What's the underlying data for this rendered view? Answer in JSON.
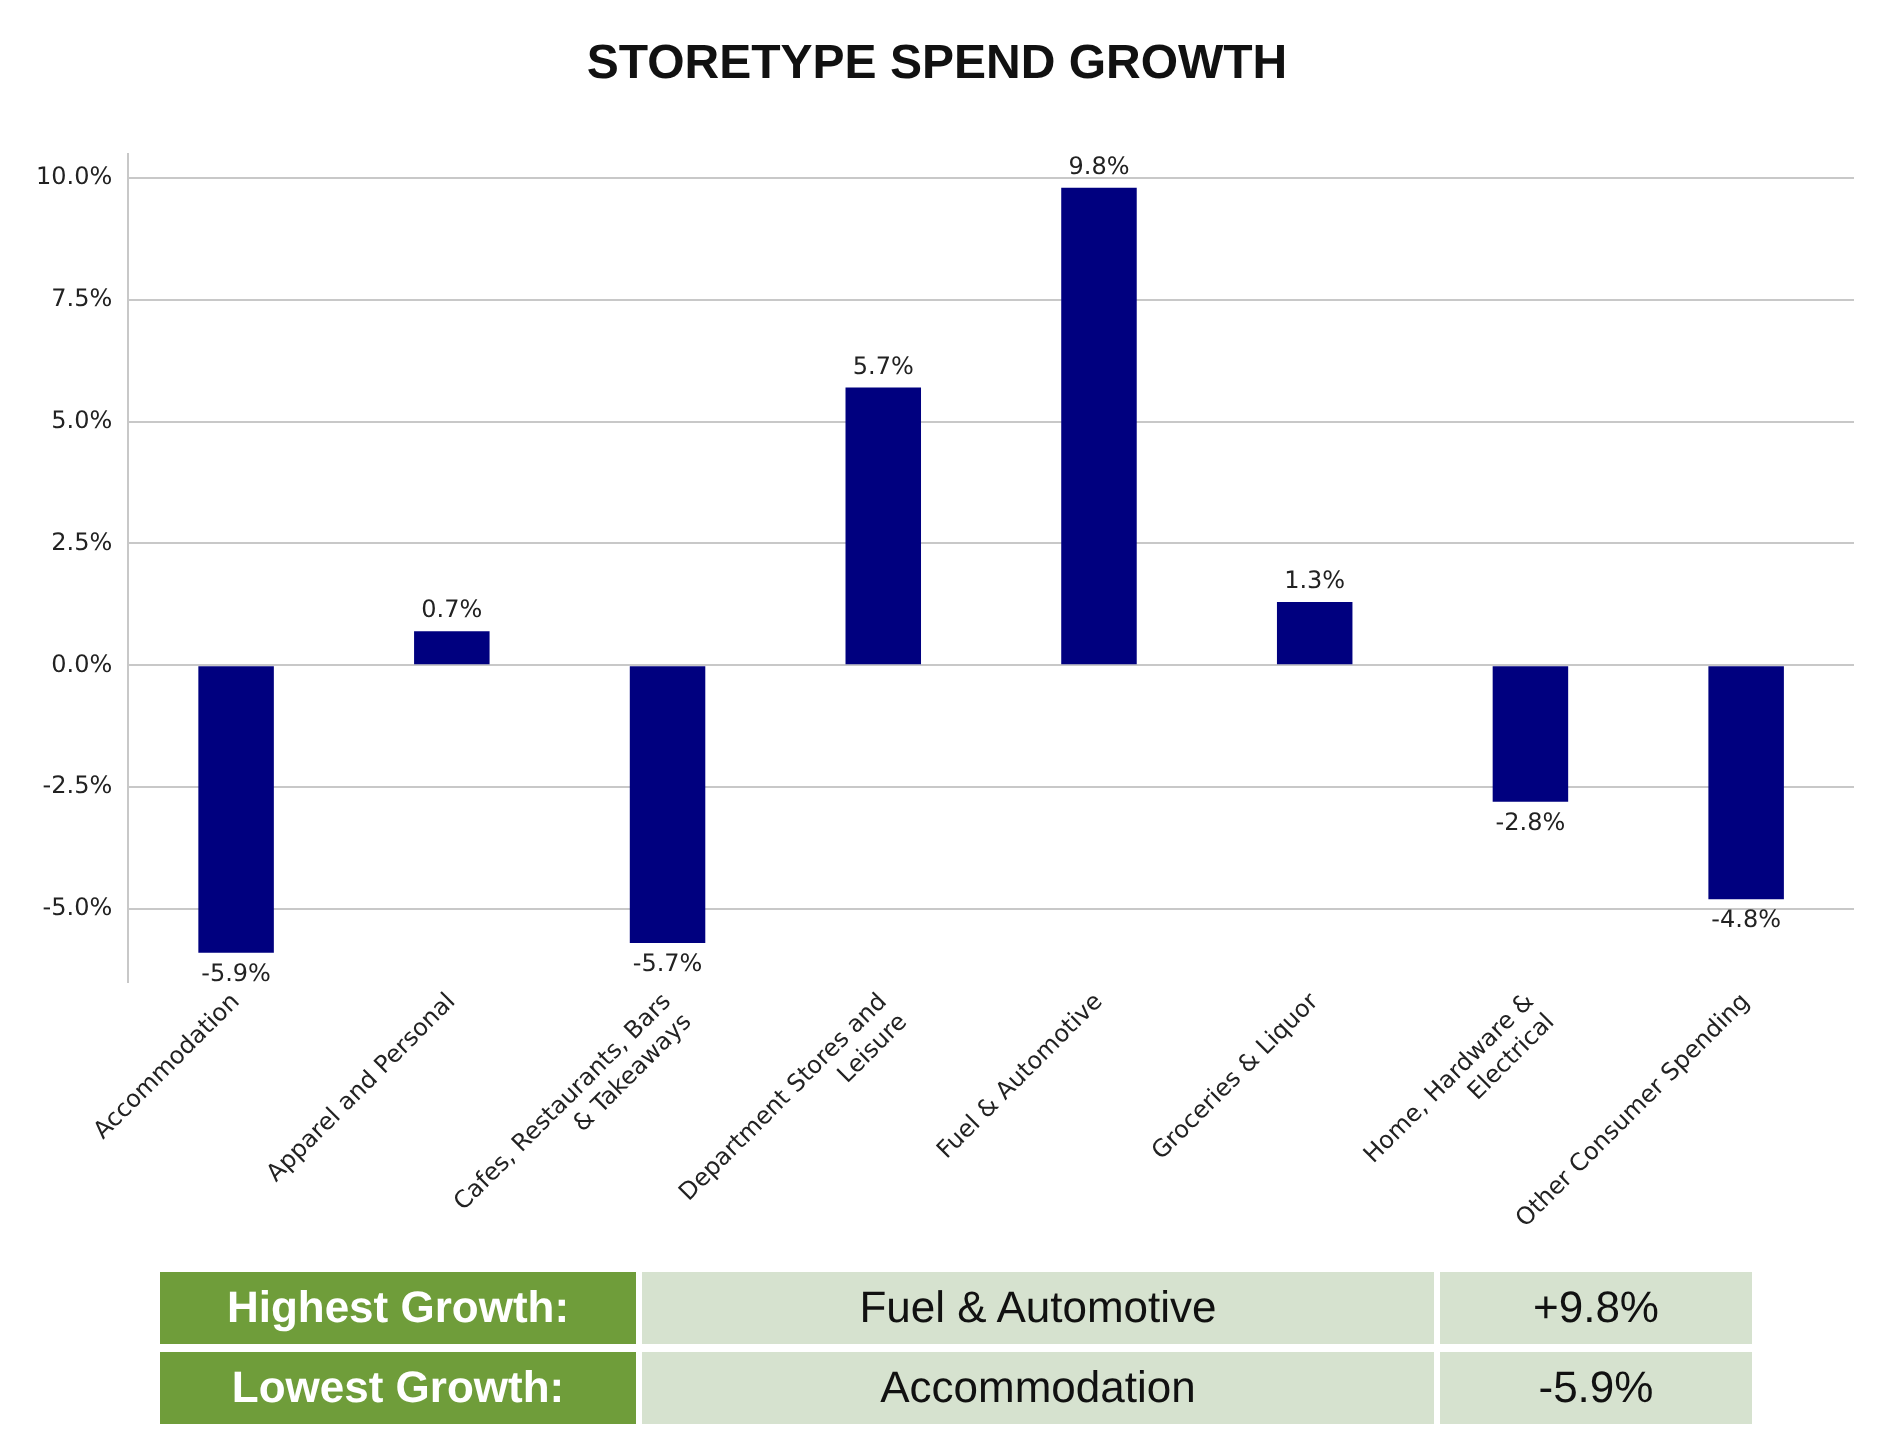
{
  "chart_data": {
    "type": "bar",
    "title": "STORETYPE SPEND GROWTH",
    "categories": [
      "Accommodation",
      "Apparel and Personal",
      "Cafes, Restaurants, Bars & Takeaways",
      "Department Stores and Leisure",
      "Fuel & Automotive",
      "Groceries & Liquor",
      "Home, Hardware & Electrical",
      "Other Consumer Spending"
    ],
    "values": [
      -5.9,
      0.7,
      -5.7,
      5.7,
      9.8,
      1.3,
      -2.8,
      -4.8
    ],
    "value_labels": [
      "-5.9%",
      "0.7%",
      "-5.7%",
      "5.7%",
      "9.8%",
      "1.3%",
      "-2.8%",
      "-4.8%"
    ],
    "color": "#00007f",
    "ylim": [
      -6.5,
      10.5
    ],
    "yticks": [
      {
        "value": -5,
        "label": "-5.0%"
      },
      {
        "value": -2.5,
        "label": "-2.5%"
      },
      {
        "value": 0,
        "label": "0.0%"
      },
      {
        "value": 2.5,
        "label": "2.5%"
      },
      {
        "value": 5,
        "label": "5.0%"
      },
      {
        "value": 7.5,
        "label": "7.5%"
      },
      {
        "value": 10,
        "label": "10.0%"
      }
    ],
    "grid": "y",
    "legend": false,
    "annotations": [
      "Highest Growth:",
      "Fuel & Automotive",
      "+9.8%",
      "Lowest Growth:",
      "Accommodation",
      "-5.9%"
    ]
  }
}
